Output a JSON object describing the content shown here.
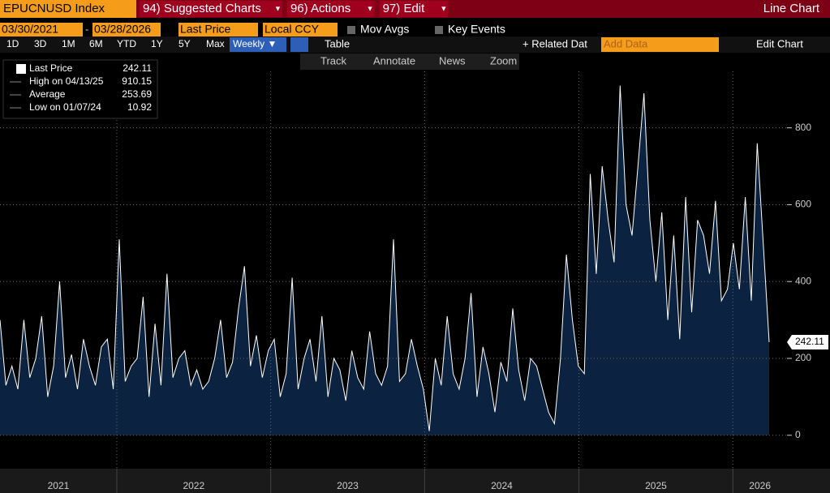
{
  "toolbar": {
    "security": "EPUCNUSD Index",
    "menus": [
      "94) Suggested Charts",
      "96) Actions",
      "97) Edit"
    ],
    "view": "Line Chart",
    "date_from": "03/30/2021",
    "date_to": "03/28/2026",
    "field": "Last Price",
    "currency": "Local CCY",
    "options": [
      "Mov Avgs",
      "Key Events"
    ],
    "periods": [
      "1D",
      "3D",
      "1M",
      "6M",
      "YTD",
      "1Y",
      "5Y",
      "Max"
    ],
    "frequency": "Weekly ▼",
    "table": "Table",
    "related": "+ Related Dat",
    "add_data": "Add Data",
    "edit_chart": "Edit Chart",
    "tools": [
      "Track",
      "Annotate",
      "News",
      "Zoom"
    ]
  },
  "chart_data": {
    "type": "area",
    "color": "#ffffff",
    "fill": "#0b2340",
    "legend": [
      {
        "label": "Last Price",
        "value": "242.11"
      },
      {
        "label": "High on 04/13/25",
        "value": "910.15"
      },
      {
        "label": "Average",
        "value": "253.69"
      },
      {
        "label": "Low on 01/07/24",
        "value": "10.92"
      }
    ],
    "x_labels": [
      "2021",
      "2022",
      "2023",
      "2024",
      "2025",
      "2026"
    ],
    "values": [
      300,
      130,
      180,
      120,
      300,
      150,
      200,
      310,
      100,
      180,
      400,
      150,
      210,
      120,
      250,
      180,
      130,
      230,
      250,
      120,
      510,
      140,
      180,
      200,
      360,
      100,
      290,
      130,
      420,
      150,
      200,
      220,
      130,
      170,
      120,
      140,
      200,
      300,
      150,
      190,
      330,
      440,
      180,
      260,
      150,
      220,
      250,
      100,
      160,
      410,
      120,
      200,
      250,
      140,
      310,
      100,
      200,
      170,
      90,
      220,
      150,
      120,
      270,
      160,
      130,
      180,
      510,
      140,
      160,
      250,
      180,
      120,
      10.92,
      200,
      130,
      310,
      160,
      120,
      200,
      370,
      100,
      230,
      160,
      60,
      190,
      140,
      330,
      170,
      90,
      200,
      180,
      120,
      60,
      30,
      200,
      470,
      300,
      180,
      160,
      680,
      420,
      700,
      560,
      450,
      910.15,
      600,
      520,
      700,
      890,
      560,
      400,
      580,
      300,
      520,
      250,
      620,
      320,
      560,
      520,
      420,
      610,
      350,
      380,
      500,
      380,
      620,
      350,
      760,
      500,
      242.11
    ],
    "value_labels": {
      "129": "242.11"
    },
    "ylim": [
      -87,
      947
    ],
    "yticks": [
      0,
      200,
      400,
      600,
      800
    ],
    "grid": true
  }
}
